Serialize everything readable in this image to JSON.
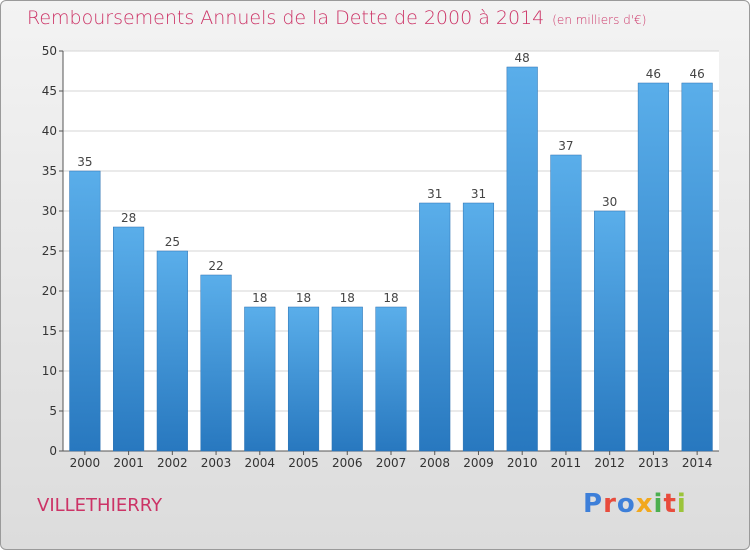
{
  "chart_data": {
    "type": "bar",
    "title": "Remboursements Annuels de la Dette de 2000 à 2014",
    "subtitle": "(en milliers d'€)",
    "categories": [
      "2000",
      "2001",
      "2002",
      "2003",
      "2004",
      "2005",
      "2006",
      "2007",
      "2008",
      "2009",
      "2010",
      "2011",
      "2012",
      "2013",
      "2014"
    ],
    "values": [
      35,
      28,
      25,
      22,
      18,
      18,
      18,
      18,
      31,
      31,
      48,
      37,
      30,
      46,
      46
    ],
    "ylim": [
      0,
      50
    ],
    "yticks": [
      0,
      5,
      10,
      15,
      20,
      25,
      30,
      35,
      40,
      45,
      50
    ],
    "grid": true,
    "bar_color": "#3d8fd6",
    "xlabel": "",
    "ylabel": ""
  },
  "footer": {
    "location": "VILLETHIERRY",
    "brand": "Proxiti"
  },
  "colors": {
    "title": "#cc3366",
    "brand_letters": [
      "#3d7fd9",
      "#e84c3d",
      "#3d7fd9",
      "#f2a81d",
      "#4caf50",
      "#e84c3d",
      "#9cc43a"
    ]
  }
}
